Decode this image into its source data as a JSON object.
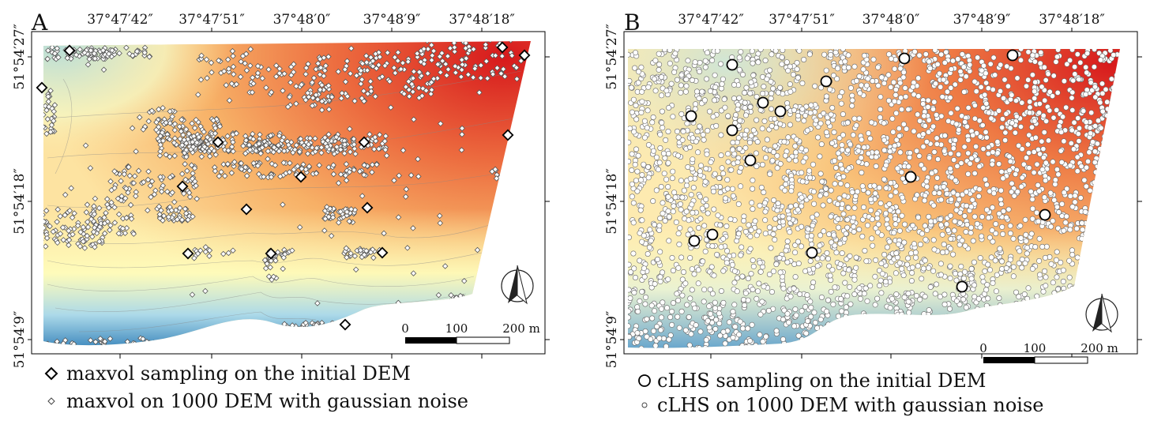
{
  "panels": [
    {
      "letter": "A",
      "lon_ticks": [
        "37°47′42″",
        "37°47′51″",
        "37°48′0″",
        "37°48′9″",
        "37°48′18″"
      ],
      "lat_ticks": [
        "51°54′27″",
        "51°54′18″",
        "51°54′9″"
      ],
      "scalebar": {
        "labels": [
          "0",
          "100",
          "200 m"
        ]
      },
      "legend": [
        {
          "marker": "diamond",
          "size": "large",
          "text": "maxvol sampling on the initial DEM"
        },
        {
          "marker": "diamond",
          "size": "small",
          "text": "maxvol on 1000 DEM with gaussian noise"
        }
      ],
      "north_arrow": "north-arrow-icon"
    },
    {
      "letter": "B",
      "lon_ticks": [
        "37°47′42″",
        "37°47′51″",
        "37°48′0″",
        "37°48′9″",
        "37°48′18″"
      ],
      "lat_ticks": [
        "51°54′27″",
        "51°54′18″",
        "51°54′9″"
      ],
      "scalebar": {
        "labels": [
          "0",
          "100",
          "200 m"
        ]
      },
      "legend": [
        {
          "marker": "circle",
          "size": "large",
          "text": "cLHS sampling on the initial DEM"
        },
        {
          "marker": "circle",
          "size": "small",
          "text": "cLHS on 1000 DEM with gaussian noise"
        }
      ],
      "north_arrow": "north-arrow-icon"
    }
  ],
  "colors": {
    "high": "#d7191c",
    "upper": "#f4a05a",
    "mid": "#fefebd",
    "lower": "#abd9e9",
    "low": "#2c7bb6"
  }
}
